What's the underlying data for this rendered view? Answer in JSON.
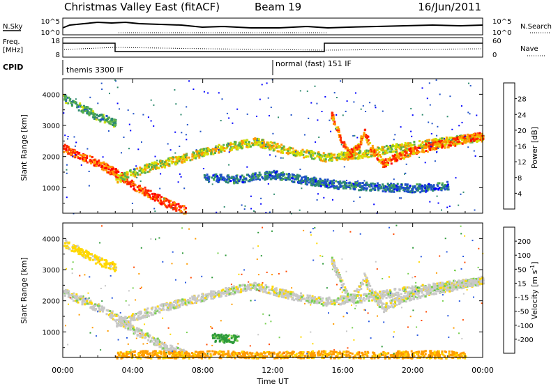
{
  "header": {
    "station": "Christmas Valley East (fitACF)",
    "beam": "Beam 19",
    "date": "16/Jun/2011"
  },
  "noise_panel": {
    "left_label": "N.Sky",
    "left_ticks": [
      "10^5",
      "10^0"
    ],
    "right_ticks": [
      "10^5",
      "10^0"
    ],
    "right_label": "N.Search"
  },
  "freq_panel": {
    "left_label_line1": "Freq.",
    "left_label_line2": "[MHz]",
    "left_ticks": [
      "18",
      "8"
    ],
    "right_ticks": [
      "60",
      "0"
    ],
    "right_label": "Nave"
  },
  "cpid": {
    "label": "CPID",
    "segments": [
      {
        "start_hour": 0,
        "end_hour": 12,
        "text": "themis 3300 IF"
      },
      {
        "start_hour": 12,
        "end_hour": 24,
        "text": "normal (fast) 151 IF"
      }
    ]
  },
  "time_axis": {
    "label": "Time UT",
    "ticks": [
      "00:00",
      "04:00",
      "08:00",
      "12:00",
      "16:00",
      "20:00",
      "00:00"
    ]
  },
  "chart_data": [
    {
      "type": "heatmap",
      "name": "power",
      "ylabel": "Slant Range [km]",
      "yticks": [
        "1000",
        "2000",
        "3000",
        "4000"
      ],
      "xlim": [
        0,
        24
      ],
      "ylim": [
        180,
        4500
      ],
      "colorbar": {
        "label": "Power [dB]",
        "ticks": [
          "4",
          "8",
          "12",
          "16",
          "20",
          "24",
          "28"
        ],
        "colors": [
          "#0000ff",
          "#1e50c8",
          "#2e8b6e",
          "#58b04a",
          "#d6e000",
          "#ff9a00",
          "#ff2a00",
          "#ff0000"
        ]
      },
      "tracks": [
        {
          "hours": [
            0,
            1,
            2,
            3,
            4,
            5,
            6,
            7
          ],
          "ranges": [
            2300,
            2050,
            1800,
            1500,
            1100,
            800,
            500,
            300
          ],
          "level": 26
        },
        {
          "hours": [
            3,
            5,
            7,
            9,
            11,
            13,
            15,
            17,
            19,
            21,
            23,
            24
          ],
          "ranges": [
            1300,
            1700,
            2000,
            2300,
            2500,
            2200,
            2000,
            2100,
            2300,
            2450,
            2600,
            2650
          ],
          "level": 18
        },
        {
          "hours": [
            0,
            1,
            2,
            3
          ],
          "ranges": [
            3900,
            3600,
            3300,
            3100
          ],
          "level": 12
        },
        {
          "hours": [
            15.3,
            15.8,
            16.3,
            16.8,
            17.2,
            17.7,
            18.3,
            19,
            20,
            21,
            22,
            23,
            24
          ],
          "ranges": [
            3400,
            2700,
            2100,
            2300,
            2800,
            2200,
            1800,
            2000,
            2200,
            2350,
            2450,
            2600,
            2700
          ],
          "level": 24
        },
        {
          "hours": [
            8,
            10,
            12,
            14,
            16,
            18,
            20,
            22
          ],
          "ranges": [
            1350,
            1300,
            1450,
            1250,
            1100,
            1050,
            1000,
            1100
          ],
          "level": 8
        }
      ]
    },
    {
      "type": "heatmap",
      "name": "velocity",
      "ylabel": "Slant Range [km]",
      "yticks": [
        "1000",
        "2000",
        "3000",
        "4000"
      ],
      "xlim": [
        0,
        24
      ],
      "ylim": [
        180,
        4500
      ],
      "colorbar": {
        "label": "Velocity [m s^-1]",
        "ticks": [
          "200",
          "100",
          "50",
          "15",
          "-15",
          "-50",
          "-100",
          "-200"
        ],
        "colors": [
          "#1a1a9a",
          "#2a5ae0",
          "#2e9a3a",
          "#78d050",
          "#c8c8c8",
          "#ffd800",
          "#ff9c00",
          "#ff4a00",
          "#ff0000"
        ]
      },
      "tracks": [
        {
          "hours": [
            0,
            1,
            2,
            3,
            4,
            5,
            6,
            7
          ],
          "ranges": [
            2300,
            2050,
            1800,
            1500,
            1100,
            800,
            500,
            300
          ],
          "level": 0
        },
        {
          "hours": [
            3,
            5,
            7,
            9,
            11,
            13,
            15,
            17,
            19,
            21,
            23,
            24
          ],
          "ranges": [
            1300,
            1700,
            2000,
            2300,
            2500,
            2200,
            2000,
            2100,
            2300,
            2450,
            2600,
            2650
          ],
          "level": 0
        },
        {
          "hours": [
            0,
            1,
            2,
            3
          ],
          "ranges": [
            3900,
            3600,
            3300,
            3100
          ],
          "level": -30
        },
        {
          "hours": [
            15.3,
            15.8,
            16.3,
            16.8,
            17.2,
            17.7,
            18.3,
            19,
            20,
            21,
            22,
            23,
            24
          ],
          "ranges": [
            3400,
            2700,
            2100,
            2300,
            2800,
            2200,
            1800,
            2000,
            2200,
            2350,
            2450,
            2600,
            2700
          ],
          "level": 0
        },
        {
          "hours": [
            8.5,
            9,
            9.5,
            10
          ],
          "ranges": [
            850,
            820,
            800,
            780
          ],
          "level": 60
        },
        {
          "hours": [
            3,
            5,
            7,
            9,
            11,
            13,
            15,
            17,
            19,
            21,
            23
          ],
          "ranges": [
            250,
            300,
            260,
            300,
            250,
            280,
            300,
            260,
            280,
            300,
            260
          ],
          "level": -60
        }
      ]
    }
  ]
}
